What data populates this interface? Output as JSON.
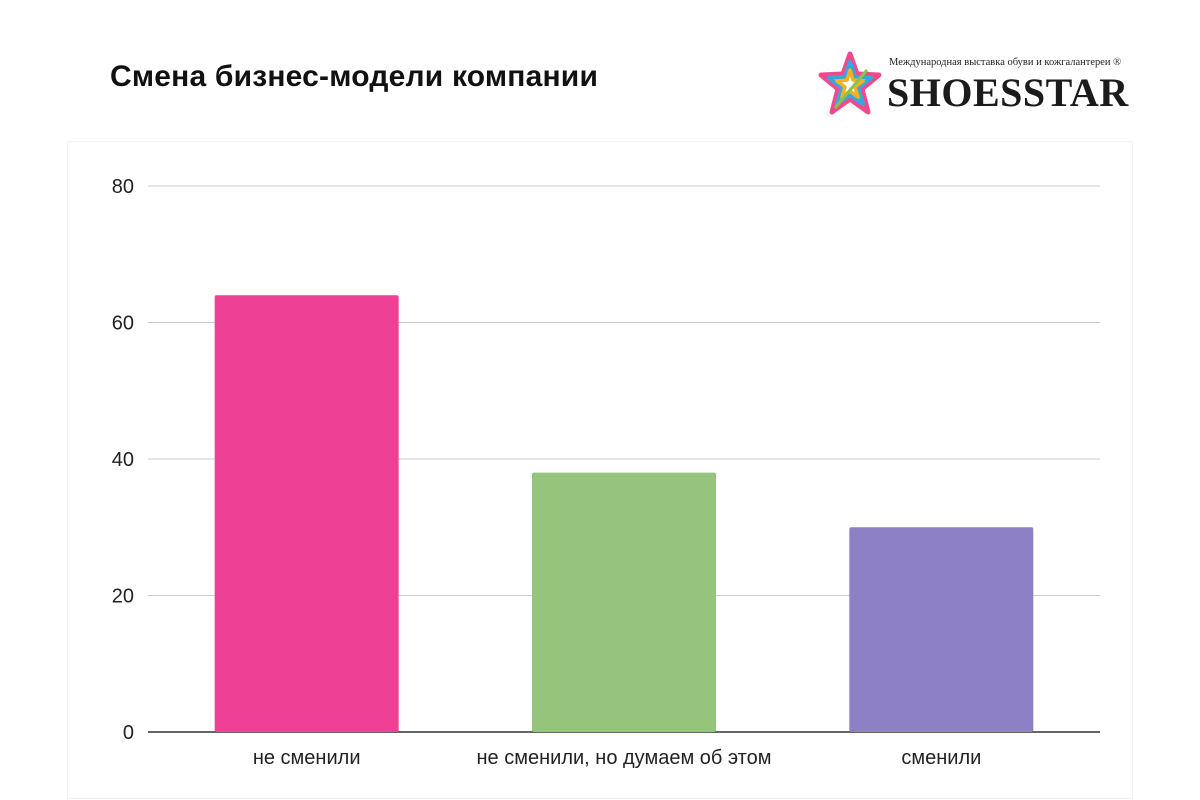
{
  "header": {
    "title": "Смена бизнес-модели компании"
  },
  "logo": {
    "tagline": "Международная выставка обуви и кожгалантереи ®",
    "brand": "SHOESSTAR"
  },
  "chart_data": {
    "type": "bar",
    "title": "",
    "xlabel": "",
    "ylabel": "",
    "categories": [
      "не сменили",
      "не сменили, но думаем об этом",
      "сменили"
    ],
    "values": [
      64,
      38,
      30
    ],
    "colors": [
      "#ee4196",
      "#95c47c",
      "#8e80c4"
    ],
    "ylim": [
      0,
      80
    ],
    "yticks": [
      "0",
      "20",
      "40",
      "60",
      "80"
    ],
    "grid": true,
    "legend": "none"
  }
}
